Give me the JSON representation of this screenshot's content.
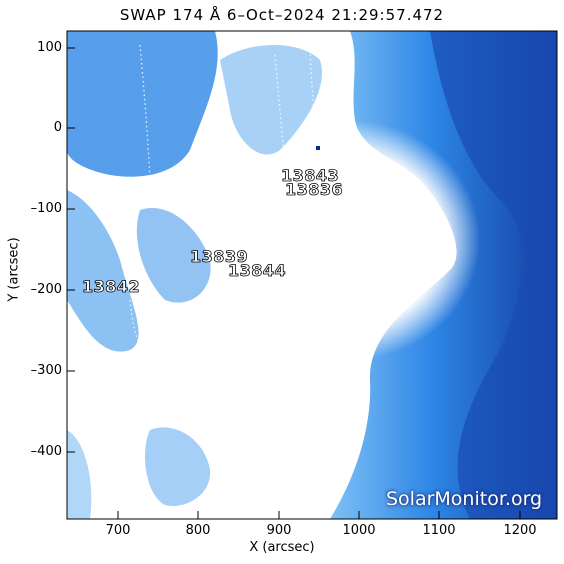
{
  "header": {
    "title": "SWAP 174 Å  6–Oct–2024 21:29:57.472"
  },
  "axes": {
    "x_label": "X (arcsec)",
    "y_label": "Y (arcsec)",
    "x_ticks": [
      "700",
      "800",
      "900",
      "1000",
      "1100",
      "1200"
    ],
    "y_ticks": [
      "100",
      "0",
      "–100",
      "–200",
      "–300",
      "–400"
    ]
  },
  "regions": [
    "13843",
    "13836",
    "13839",
    "13844",
    "13842"
  ],
  "watermark": "SolarMonitor.org",
  "colors": {
    "bright": "#ffffff",
    "mid": "#3a8ee8",
    "deep": "#0a2a8a"
  }
}
